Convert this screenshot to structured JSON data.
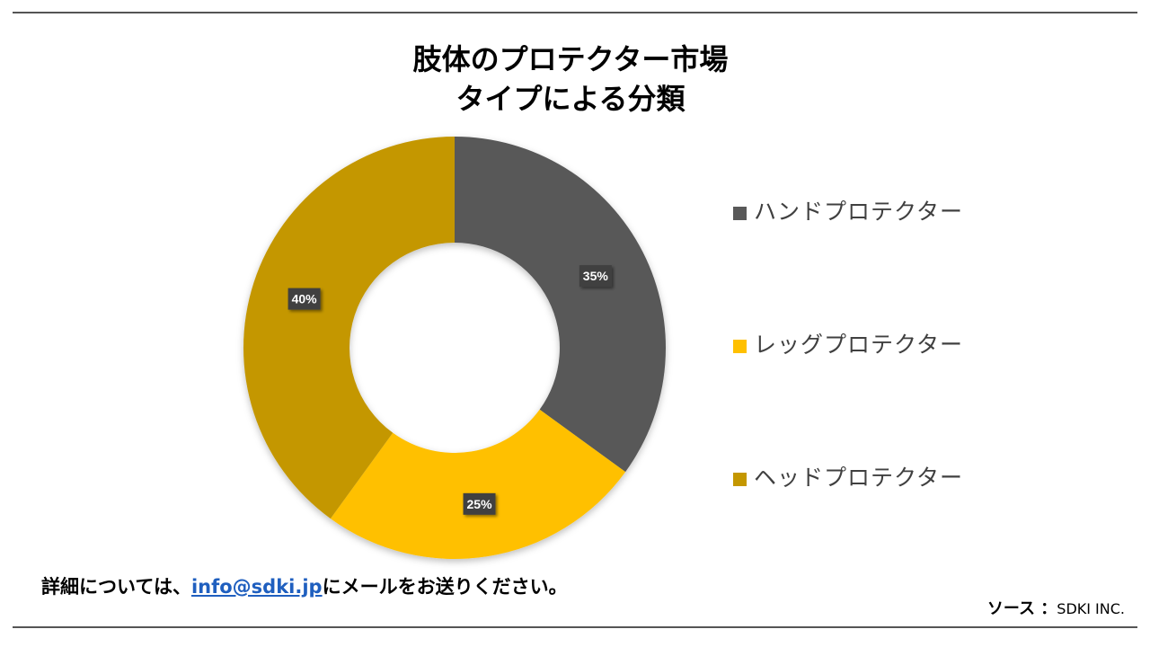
{
  "chart_data": {
    "type": "pie",
    "title_lines": [
      "肢体のプロテクター市場",
      "タイプによる分類"
    ],
    "series": [
      {
        "name": "ハンドプロテクター",
        "value": 35,
        "label": "35%",
        "color": "#595959"
      },
      {
        "name": "レッグプロテクター",
        "value": 25,
        "label": "25%",
        "color": "#FFC000"
      },
      {
        "name": "ヘッドプロテクター",
        "value": 40,
        "label": "40%",
        "color": "#C49700"
      }
    ],
    "legend_position": "right",
    "donut": true
  },
  "footer": {
    "prefix": "詳細については、",
    "email": "info@sdki.jp",
    "suffix": "にメールをお送りください。"
  },
  "source": {
    "key": "ソース ：",
    "value": "SDKI INC."
  }
}
